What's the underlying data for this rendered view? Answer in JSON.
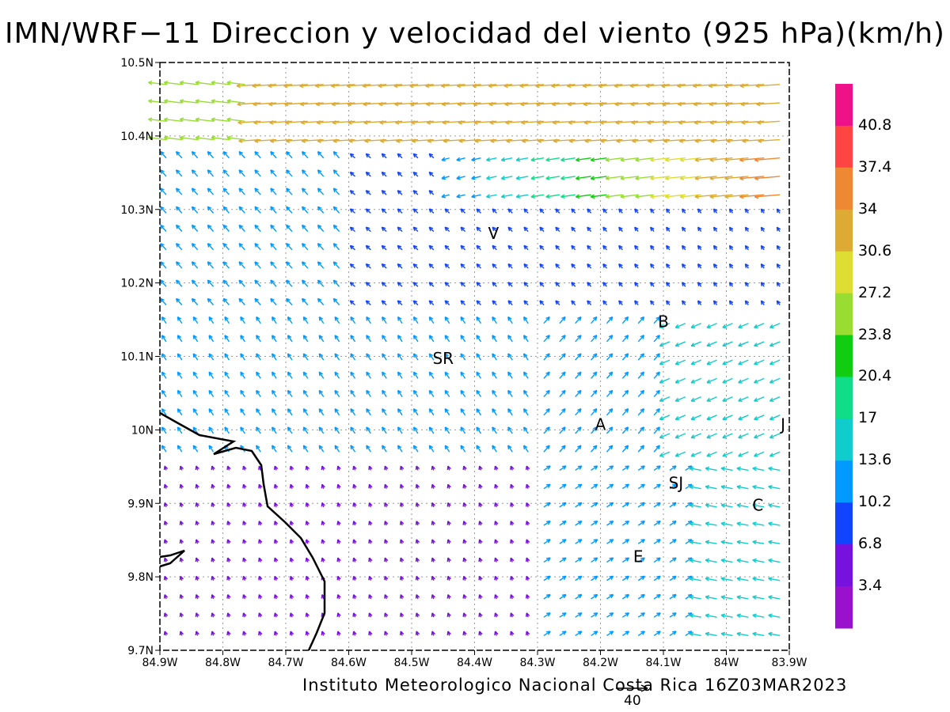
{
  "title": "IMN/WRF−11 Direccion y velocidad del viento (925 hPa)(km/h)",
  "credit": "Instituto Meteorologico Nacional Costa Rica 16Z03MAR2023",
  "reference_vector": "40",
  "map": {
    "lon_ticks": [
      "84.9W",
      "84.8W",
      "84.7W",
      "84.6W",
      "84.5W",
      "84.4W",
      "84.3W",
      "84.2W",
      "84.1W",
      "84W",
      "83.9W"
    ],
    "lat_ticks": [
      "10.5N",
      "10.4N",
      "10.3N",
      "10.2N",
      "10.1N",
      "10N",
      "9.9N",
      "9.8N",
      "9.7N"
    ],
    "station_labels": [
      {
        "text": "V",
        "lon": -84.37,
        "lat": 10.26
      },
      {
        "text": "B",
        "lon": -84.1,
        "lat": 10.14
      },
      {
        "text": "SR",
        "lon": -84.45,
        "lat": 10.09
      },
      {
        "text": "A",
        "lon": -84.2,
        "lat": 10.0
      },
      {
        "text": "J",
        "lon": -83.91,
        "lat": 10.0
      },
      {
        "text": "SJ",
        "lon": -84.08,
        "lat": 9.92
      },
      {
        "text": "C",
        "lon": -83.95,
        "lat": 9.89
      },
      {
        "text": "E",
        "lon": -84.14,
        "lat": 9.82
      }
    ]
  },
  "colorbar": {
    "labels": [
      "40.8",
      "37.4",
      "34",
      "30.6",
      "27.2",
      "23.8",
      "20.4",
      "17",
      "13.6",
      "10.2",
      "6.8",
      "3.4"
    ],
    "colors": [
      "#ee1188",
      "#ff4444",
      "#ee8833",
      "#ddaa33",
      "#dddd33",
      "#99dd33",
      "#11cc11",
      "#11dd88",
      "#11cccc",
      "#0099ff",
      "#1144ff",
      "#7711dd",
      "#9911cc"
    ]
  }
}
